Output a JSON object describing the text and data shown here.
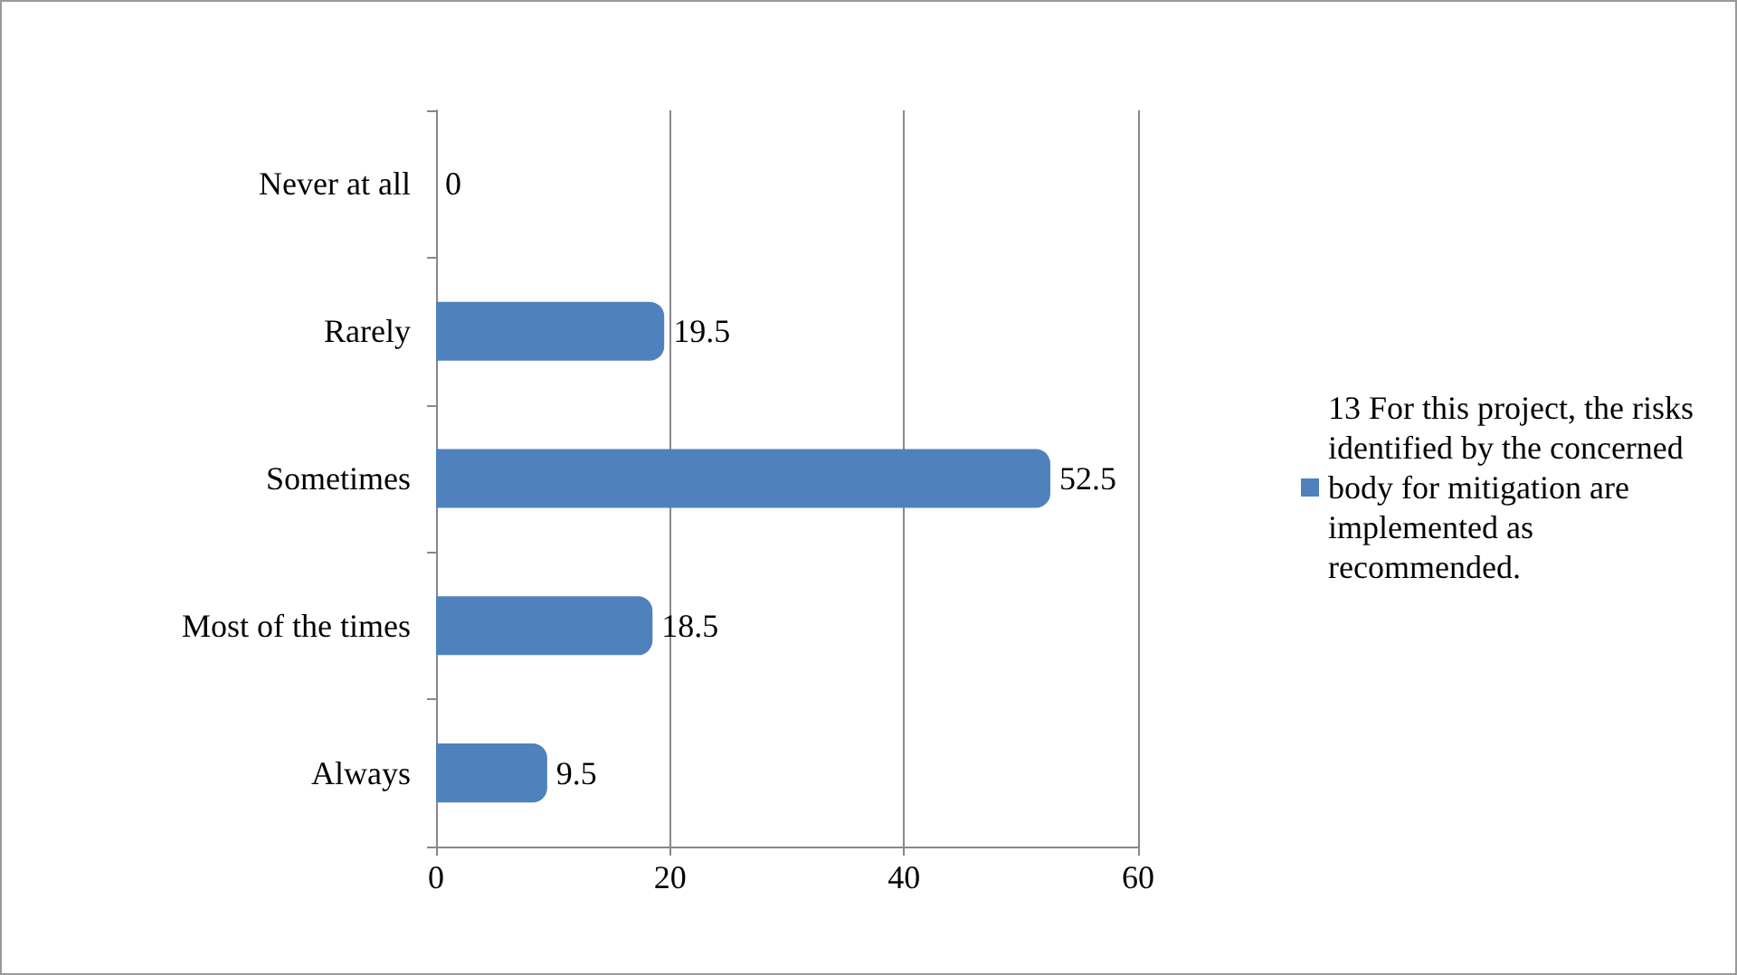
{
  "chart_data": {
    "type": "bar",
    "orientation": "horizontal",
    "categories": [
      "Never at all",
      "Rarely",
      "Sometimes",
      "Most of the times",
      "Always"
    ],
    "series": [
      {
        "name": "13 For this project, the risks identified by the concerned body for mitigation are implemented as recommended.",
        "color": "#4f81bd",
        "values": [
          0,
          19.5,
          52.5,
          18.5,
          9.5
        ]
      }
    ],
    "xlim": [
      0,
      60
    ],
    "xticks": [
      0,
      20,
      40,
      60
    ],
    "grid": "x",
    "legend": "right",
    "data_labels": true
  }
}
